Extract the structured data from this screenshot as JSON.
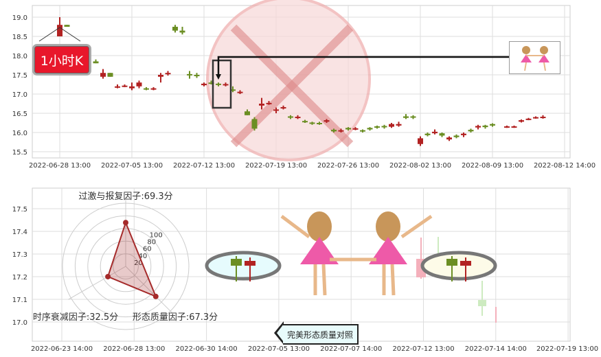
{
  "timeframe_label": "1小时K",
  "compare_button": "完美形态质量对照",
  "colors": {
    "up": "#b22222",
    "down": "#6b8e23",
    "watermark": "#e07070",
    "radar": "#a52a2a"
  },
  "chart_data": [
    {
      "type": "candlestick",
      "ylim": [
        15.4,
        19.3
      ],
      "yticks": [
        "19.0",
        "18.5",
        "18.0",
        "17.5",
        "17.0",
        "16.5",
        "16.0",
        "15.5"
      ],
      "xticks": [
        "2022-06-28 13:00",
        "2022-07-05 13:00",
        "2022-07-12 13:00",
        "2022-07-19 13:00",
        "2022-07-26 13:00",
        "2022-08-02 13:00",
        "2022-08-09 13:00",
        "2022-08-12 14:00"
      ],
      "grid": true,
      "candles": [
        [
          18.5,
          18.8,
          19.0,
          18.5
        ],
        [
          18.8,
          18.75,
          18.8,
          18.75
        ],
        null,
        null,
        null,
        [
          17.85,
          17.8,
          17.9,
          17.8
        ],
        [
          17.45,
          17.55,
          17.65,
          17.4
        ],
        [
          17.55,
          17.45,
          17.55,
          17.45
        ],
        [
          17.18,
          17.2,
          17.25,
          17.15
        ],
        [
          17.2,
          17.22,
          17.25,
          17.18
        ],
        [
          17.15,
          17.2,
          17.3,
          17.1
        ],
        [
          17.2,
          17.3,
          17.35,
          17.15
        ],
        [
          17.15,
          17.13,
          17.18,
          17.1
        ],
        [
          17.12,
          17.15,
          17.18,
          17.1
        ],
        [
          17.45,
          17.5,
          17.55,
          17.3
        ],
        [
          17.53,
          17.55,
          17.6,
          17.48
        ],
        [
          18.75,
          18.65,
          18.8,
          18.6
        ],
        [
          18.65,
          18.6,
          18.75,
          18.55
        ],
        [
          17.52,
          17.5,
          17.6,
          17.4
        ],
        [
          17.5,
          17.48,
          17.55,
          17.42
        ],
        [
          17.23,
          17.27,
          17.3,
          17.2
        ],
        [
          17.3,
          17.28,
          17.35,
          17.25
        ],
        [
          17.27,
          17.25,
          17.3,
          17.2
        ],
        [
          17.24,
          17.26,
          17.3,
          17.2
        ],
        [
          17.12,
          17.1,
          17.2,
          17.05
        ],
        [
          17.04,
          17.06,
          17.1,
          17.0
        ],
        [
          16.55,
          16.45,
          16.6,
          16.45
        ],
        [
          16.35,
          16.1,
          16.4,
          16.05
        ],
        [
          16.7,
          16.75,
          16.9,
          16.6
        ],
        [
          16.75,
          16.77,
          16.82,
          16.72
        ],
        [
          16.58,
          16.6,
          16.65,
          16.5
        ],
        [
          16.64,
          16.66,
          16.7,
          16.6
        ],
        [
          16.42,
          16.4,
          16.45,
          16.35
        ],
        [
          16.39,
          16.41,
          16.45,
          16.35
        ],
        [
          16.3,
          16.28,
          16.33,
          16.25
        ],
        [
          16.26,
          16.24,
          16.28,
          16.2
        ],
        [
          16.25,
          16.23,
          16.28,
          16.2
        ],
        [
          16.28,
          16.32,
          16.35,
          16.25
        ],
        [
          16.07,
          16.03,
          16.1,
          16.0
        ],
        [
          16.04,
          16.06,
          16.1,
          16.0
        ],
        [
          16.12,
          16.08,
          16.14,
          16.05
        ],
        [
          16.09,
          16.11,
          16.14,
          16.06
        ],
        [
          16.06,
          16.04,
          16.08,
          16.0
        ],
        [
          16.12,
          16.08,
          16.14,
          16.05
        ],
        [
          16.16,
          16.13,
          16.18,
          16.1
        ],
        [
          16.17,
          16.14,
          16.2,
          16.1
        ],
        [
          16.15,
          16.22,
          16.25,
          16.12
        ],
        [
          16.18,
          16.22,
          16.28,
          16.15
        ],
        [
          16.42,
          16.38,
          16.48,
          16.35
        ],
        [
          16.42,
          16.4,
          16.45,
          16.35
        ],
        [
          15.7,
          15.85,
          15.9,
          15.65
        ],
        [
          15.97,
          15.93,
          16.0,
          15.9
        ],
        [
          15.98,
          16.02,
          16.08,
          15.95
        ],
        [
          15.98,
          15.92,
          16.0,
          15.88
        ],
        [
          15.82,
          15.87,
          15.9,
          15.78
        ],
        [
          15.92,
          15.88,
          15.95,
          15.85
        ],
        [
          15.93,
          15.97,
          16.0,
          15.88
        ],
        [
          16.07,
          16.03,
          16.1,
          16.0
        ],
        [
          16.13,
          16.17,
          16.2,
          16.08
        ],
        [
          16.18,
          16.14,
          16.2,
          16.1
        ],
        [
          16.22,
          16.18,
          16.24,
          16.15
        ],
        null,
        [
          16.14,
          16.16,
          16.18,
          16.12
        ],
        [
          16.14,
          16.16,
          16.18,
          16.12
        ],
        [
          16.28,
          16.32,
          16.34,
          16.26
        ],
        [
          16.34,
          16.36,
          16.38,
          16.32
        ],
        [
          16.38,
          16.4,
          16.42,
          16.36
        ],
        [
          16.39,
          16.41,
          16.45,
          16.36
        ]
      ]
    },
    {
      "type": "radar",
      "ylim": [
        16.93,
        17.57
      ],
      "yticks": [
        "17.5",
        "17.4",
        "17.3",
        "17.2",
        "17.1",
        "17.0"
      ],
      "xticks": [
        "2022-06-23 14:00",
        "2022-06-28 13:00",
        "2022-06-30 14:00",
        "2022-07-05 13:00",
        "2022-07-07 14:00",
        "2022-07-12 13:00",
        "2022-07-14 14:00",
        "2022-07-19 13:00"
      ],
      "radial_ticks": [
        "20",
        "40",
        "60",
        "80",
        "100"
      ],
      "axes": [
        {
          "label": "过激与报复因子:69.3分",
          "value": 69.3
        },
        {
          "label": "形态质量因子:67.3分",
          "value": 67.3
        },
        {
          "label": "时序衰减因子:32.5分",
          "value": 32.5
        }
      ]
    }
  ]
}
